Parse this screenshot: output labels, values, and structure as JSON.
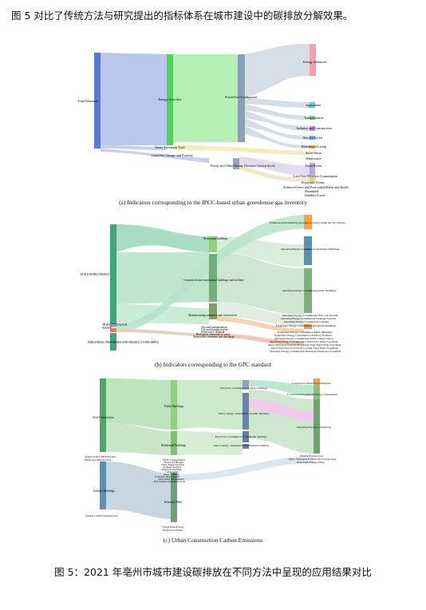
{
  "intro": "图 5 对比了传统方法与研究提出的指标体系在城市建设中的碳排放分解效果。",
  "figure_caption": "图 5：2021 年亳州市城市建设碳排放在不同方法中呈现的应用结果对比",
  "panels": [
    {
      "caption": "(a) Indicators corresponding to the IPCC-based urban greenhouse gas inventory",
      "labels": {
        "root": "Total Emission",
        "energy": "Energy Activities",
        "fossil": "Fossil Fuel Combustion",
        "waste": "Waste Treatment Total",
        "landuse": "Land Use Change and Forestry",
        "forest": "Forest and Other Woody Biomass Carbon Stock",
        "energy_ind": "Energy Industries",
        "agri": "Agriculture",
        "transport": "Transportation",
        "industry": "Industry and Construction",
        "service": "Service Sector",
        "residential": "Residential Living",
        "solid": "Solid Waste",
        "wastewater": "Wastewater",
        "arbor": "Arbor Forest",
        "livetree": "Live Tree Biomass Consumption",
        "economic": "Economic Forest",
        "scattered": "Scattered Trees and Four-sided Fields and Roads",
        "shrub": "Shrubland",
        "bamboo": "Bamboo Forest"
      }
    },
    {
      "caption": "(b) Indicators corresponding to the GPC standard",
      "labels": {
        "stationary": "STATIONARY ENERGY",
        "transport": "TRANSPORTATION",
        "waste": "WASTE",
        "ippu": "INDUSTRIAL PROCESSES AND PRODUCT USES (IPPU)",
        "residential": "Residential buildings",
        "commercial": "Commercial and institutional buildings and facilities",
        "manufacturing": "Manufacturing industries and construction",
        "onroad": "On-road transportation",
        "offroad": "Off-road transportation",
        "solid": "Solid waste disposal",
        "biological": "Biological treatment of waste",
        "wastewater": "Wastewater treatment and discharge",
        "t_industrial": "Emissions from industrial processes occurring within the city boundry",
        "t_resbld": "Operating Energy Consumption-Residential Buildings",
        "t_pubbld": "Operating Energy Consumption-Public Buildings",
        "t_heat": "Operating Energy Consumption-Heat, Gas Systems",
        "t_drainage": "Operating Energy Consumption-Drainage Systems",
        "t_lighting": "Operating Energy Consumption-Lighting",
        "t_equip_res": "Equipment Energy Consumption-Residential Buildings",
        "t_equip_pub": "Equipment Energy Consumption-Public Buildings",
        "t_equip_aux": "Equipment Energy Consumption-Auxiliary Facilities",
        "t_op_transport": "Operating Energy Consumption-Public Transportation",
        "t_op_construct": "Operating Energy Consumption-Construction Waste Treatment",
        "t_direct_stage": "Direct Emissions from the Processing Stage-Solid Waste Treatment",
        "t_direct_water": "Direct Emissions from the Processing Stage-Water Treatment",
        "t_op_wastewater": "Operating Energy Consumption-Municipal Wastewater Treatment"
      }
    },
    {
      "caption": "(c) Urban Construction Carbon Emissions",
      "labels": {
        "civil": "Civil Construction",
        "transport_infra": "Transportation Infrastructure",
        "municipal": "Municipal Infrastructure",
        "industry_bld": "Industry Buildings",
        "natural": "Natural Carbon Sequestration",
        "public_bld": "Public Buildings",
        "residential_bld": "Residential Buildings",
        "public_transport": "Public Transportation",
        "roads": "Roads and Bridges",
        "water_supply": "Water Supply Systems",
        "drainage": "Drainage Systems",
        "sanitation": "Sanitation Facilities",
        "landscaping": "Landscaping",
        "street_lighting": "Street Lighting",
        "economic_dev": "Economic Development",
        "solid_waste_mgmt": "Solid Waste Management",
        "wetland": "2024 Wetland Parks/Reservoirs",
        "industrial_plant": "Industrial Plant",
        "forest_parks": "Forest Parks/Forests",
        "urban_parks": "Urban Forest Parks",
        "elec_public": "Electricity consumption of public buildings",
        "direct_public": "Direct energy consumption of public buildings",
        "elec_res": "Electricity consumption of residential buildings",
        "direct_res": "Direct energy consumption of residential buildings",
        "t_material": "Construction Material Consumption",
        "t_equipment": "Construction Equipment Energy Consumption",
        "t_operating": "Operating Energy Consumption",
        "t_outside": "Outside Process Loss",
        "t_direct": "Direct Emissions from the Processing Stage",
        "t_renewable": "Renewable Energy Offset"
      }
    }
  ],
  "colors": {
    "blue": "#5b78d0",
    "green": "#4fd35a",
    "fossil": "#8aa0b6",
    "pink": "#f2a1b4",
    "orange": "#f3a14b",
    "steel": "#5f8fb0",
    "teal": "#3fa67c",
    "sage": "#8fbf7f"
  }
}
